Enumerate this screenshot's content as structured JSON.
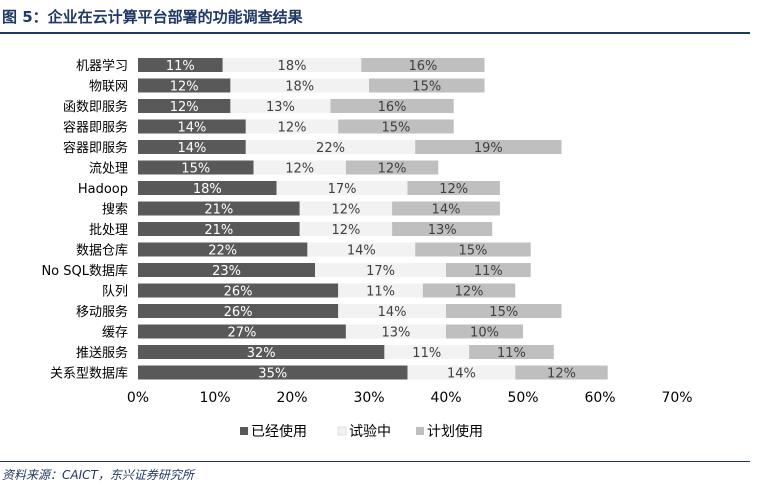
{
  "figure_title": "图 5：企业在云计算平台部署的功能调查结果",
  "source_note": "资料来源：CAICT，东兴证券研究所",
  "colors": {
    "used": "#595959",
    "pilot": "#f2f2f2",
    "planned": "#bfbfbf",
    "title": "#1f3864"
  },
  "chart_data": {
    "type": "bar",
    "orientation": "horizontal",
    "stacked": true,
    "categories": [
      "机器学习",
      "物联网",
      "函数即服务",
      "容器即服务",
      "容器即服务",
      "流处理",
      "Hadoop",
      "搜索",
      "批处理",
      "数据仓库",
      "No SQL数据库",
      "队列",
      "移动服务",
      "缓存",
      "推送服务",
      "关系型数据库"
    ],
    "series": [
      {
        "name": "已经使用",
        "values": [
          11,
          12,
          12,
          14,
          14,
          15,
          18,
          21,
          21,
          22,
          23,
          26,
          26,
          27,
          32,
          35
        ]
      },
      {
        "name": "试验中",
        "values": [
          18,
          18,
          13,
          12,
          22,
          12,
          17,
          12,
          12,
          14,
          17,
          11,
          14,
          13,
          11,
          14
        ]
      },
      {
        "name": "计划使用",
        "values": [
          16,
          15,
          16,
          15,
          19,
          12,
          12,
          14,
          13,
          15,
          11,
          12,
          15,
          10,
          11,
          12
        ]
      }
    ],
    "xlim": [
      0,
      70
    ],
    "xticks": [
      "0%",
      "10%",
      "20%",
      "30%",
      "40%",
      "50%",
      "60%",
      "70%"
    ],
    "value_suffix": "%",
    "legend_position": "bottom",
    "grid": false
  }
}
